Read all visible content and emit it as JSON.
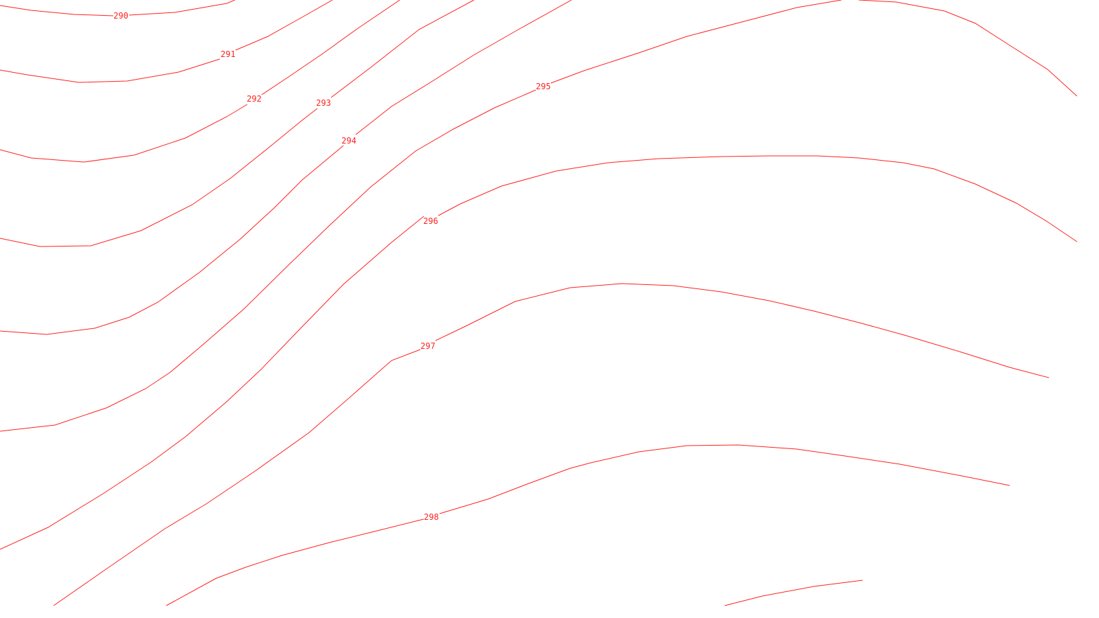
{
  "map": {
    "line_color": "#ff2020",
    "background": "#ffffff",
    "contours": [
      {
        "value": "290"
      },
      {
        "value": "291"
      },
      {
        "value": "292"
      },
      {
        "value": "293"
      },
      {
        "value": "294"
      },
      {
        "value": "295"
      },
      {
        "value": "296"
      },
      {
        "value": "297"
      },
      {
        "value": "298"
      }
    ]
  }
}
